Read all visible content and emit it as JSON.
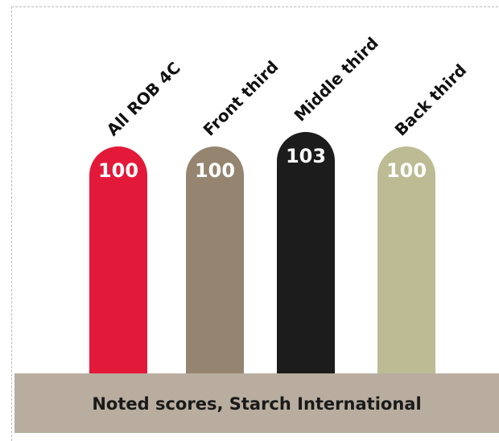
{
  "chart_data": {
    "type": "bar",
    "categories": [
      "All ROB 4C",
      "Front third",
      "Middle third",
      "Back third"
    ],
    "values": [
      100,
      100,
      103,
      100
    ],
    "value_labels": [
      "100",
      "100",
      "103",
      "100"
    ],
    "colors": [
      "#e3193a",
      "#958570",
      "#1c1c1c",
      "#bcbb93"
    ],
    "title": "",
    "xlabel": "",
    "ylabel": "",
    "ylim": [
      0,
      105
    ],
    "grid": false,
    "legend": "none"
  },
  "footer": {
    "caption": "Noted scores, Starch International"
  }
}
